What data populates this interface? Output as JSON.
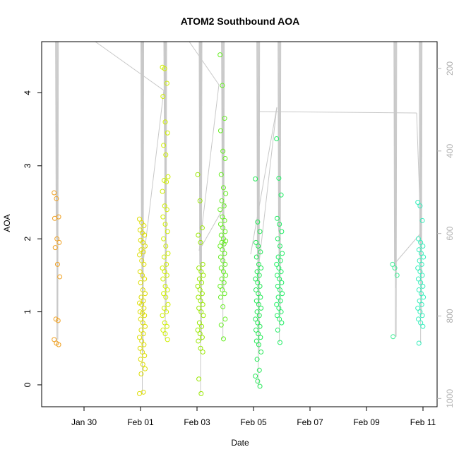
{
  "chart_data": {
    "type": "scatter",
    "title": "ATOM2 Southbound AOA",
    "xlabel": "Date",
    "ylabel": "AOA",
    "xlim": [
      "2014-01-28T12:00",
      "2014-02-11T12:00"
    ],
    "ylim": [
      -0.3,
      4.7
    ],
    "x_ticks": [
      {
        "date": "2014-01-30",
        "label": "Jan 30"
      },
      {
        "date": "2014-02-01",
        "label": "Feb 01"
      },
      {
        "date": "2014-02-03",
        "label": "Feb 03"
      },
      {
        "date": "2014-02-05",
        "label": "Feb 05"
      },
      {
        "date": "2014-02-07",
        "label": "Feb 07"
      },
      {
        "date": "2014-02-09",
        "label": "Feb 09"
      },
      {
        "date": "2014-02-11",
        "label": "Feb 11"
      }
    ],
    "y_ticks": [
      0,
      1,
      2,
      3,
      4
    ],
    "y2_ticks": [
      200,
      400,
      600,
      800,
      1000
    ],
    "y2lim": [
      1020,
      135
    ],
    "grid": false,
    "profiles": [
      {
        "time": "2014-01-29T01:00",
        "color": "#f0a020",
        "values": [
          2.63,
          2.55,
          2.3,
          2.28,
          2.0,
          1.95,
          1.88,
          1.65,
          1.48,
          0.9,
          0.88,
          0.62,
          0.57,
          0.55
        ]
      },
      {
        "time": "2014-02-01T01:30",
        "color": "#dddd00",
        "values": [
          2.27,
          2.22,
          2.18,
          2.12,
          2.08,
          2.05,
          1.98,
          1.95,
          1.9,
          1.85,
          1.82,
          1.78,
          1.7,
          1.65,
          1.55,
          1.5,
          1.45,
          1.4,
          1.3,
          1.25,
          1.2,
          1.15,
          1.12,
          1.1,
          1.05,
          1.0,
          0.98,
          0.95,
          0.9,
          0.85,
          0.8,
          0.75,
          0.7,
          0.65,
          0.6,
          0.55,
          0.5,
          0.45,
          0.4,
          0.35,
          0.28,
          0.22,
          0.15,
          -0.1,
          -0.12
        ]
      },
      {
        "time": "2014-02-01T21:00",
        "color": "#cfef00",
        "values": [
          4.35,
          4.33,
          4.13,
          3.95,
          3.6,
          3.45,
          3.28,
          3.15,
          2.85,
          2.8,
          2.78,
          2.65,
          2.45,
          2.4,
          2.3,
          2.2,
          2.1,
          2.0,
          1.9,
          1.8,
          1.75,
          1.65,
          1.6,
          1.55,
          1.5,
          1.45,
          1.35,
          1.3,
          1.25,
          1.2,
          1.1,
          1.05,
          1.0,
          0.95,
          0.85,
          0.8,
          0.75,
          0.7,
          0.62
        ]
      },
      {
        "time": "2014-02-03T03:00",
        "color": "#99e800",
        "values": [
          2.88,
          2.52,
          2.15,
          2.05,
          1.95,
          1.65,
          1.6,
          1.55,
          1.5,
          1.45,
          1.4,
          1.35,
          1.3,
          1.25,
          1.2,
          1.15,
          1.1,
          1.05,
          1.0,
          0.95,
          0.85,
          0.8,
          0.75,
          0.7,
          0.65,
          0.6,
          0.5,
          0.45,
          0.08,
          -0.12
        ]
      },
      {
        "time": "2014-02-03T22:00",
        "color": "#66ee22",
        "values": [
          4.52,
          4.1,
          3.65,
          3.48,
          3.2,
          3.1,
          2.88,
          2.7,
          2.62,
          2.52,
          2.45,
          2.4,
          2.3,
          2.25,
          2.2,
          2.15,
          2.1,
          2.05,
          2.0,
          1.97,
          1.95,
          1.93,
          1.9,
          1.85,
          1.8,
          1.75,
          1.7,
          1.65,
          1.6,
          1.55,
          1.5,
          1.45,
          1.4,
          1.35,
          1.3,
          1.25,
          1.2,
          1.07,
          0.9,
          0.82,
          0.63
        ]
      },
      {
        "time": "2014-02-05T04:00",
        "color": "#22e855",
        "values": [
          2.82,
          2.23,
          2.1,
          1.95,
          1.9,
          1.82,
          1.75,
          1.65,
          1.6,
          1.55,
          1.5,
          1.45,
          1.4,
          1.35,
          1.3,
          1.25,
          1.2,
          1.15,
          1.1,
          1.05,
          1.0,
          0.95,
          0.9,
          0.85,
          0.8,
          0.75,
          0.7,
          0.65,
          0.6,
          0.55,
          0.45,
          0.35,
          0.2,
          0.12,
          0.05,
          -0.02
        ]
      },
      {
        "time": "2014-02-05T22:00",
        "color": "#22ee66",
        "values": [
          3.37,
          2.83,
          2.6,
          2.28,
          2.2,
          2.1,
          2.0,
          1.9,
          1.8,
          1.75,
          1.7,
          1.65,
          1.6,
          1.55,
          1.5,
          1.45,
          1.4,
          1.35,
          1.3,
          1.25,
          1.2,
          1.15,
          1.1,
          1.05,
          1.0,
          0.95,
          0.9,
          0.85,
          0.75,
          0.58
        ]
      },
      {
        "time": "2014-02-10T00:30",
        "color": "#44ee99",
        "values": [
          1.65,
          1.6,
          1.5,
          0.66
        ]
      },
      {
        "time": "2014-02-10T22:00",
        "color": "#33eebb",
        "values": [
          2.5,
          2.45,
          2.25,
          2.0,
          1.95,
          1.9,
          1.85,
          1.8,
          1.75,
          1.7,
          1.65,
          1.6,
          1.55,
          1.5,
          1.45,
          1.4,
          1.35,
          1.3,
          1.25,
          1.2,
          1.15,
          1.1,
          1.05,
          1.0,
          0.95,
          0.9,
          0.85,
          0.8,
          0.57
        ]
      }
    ]
  }
}
